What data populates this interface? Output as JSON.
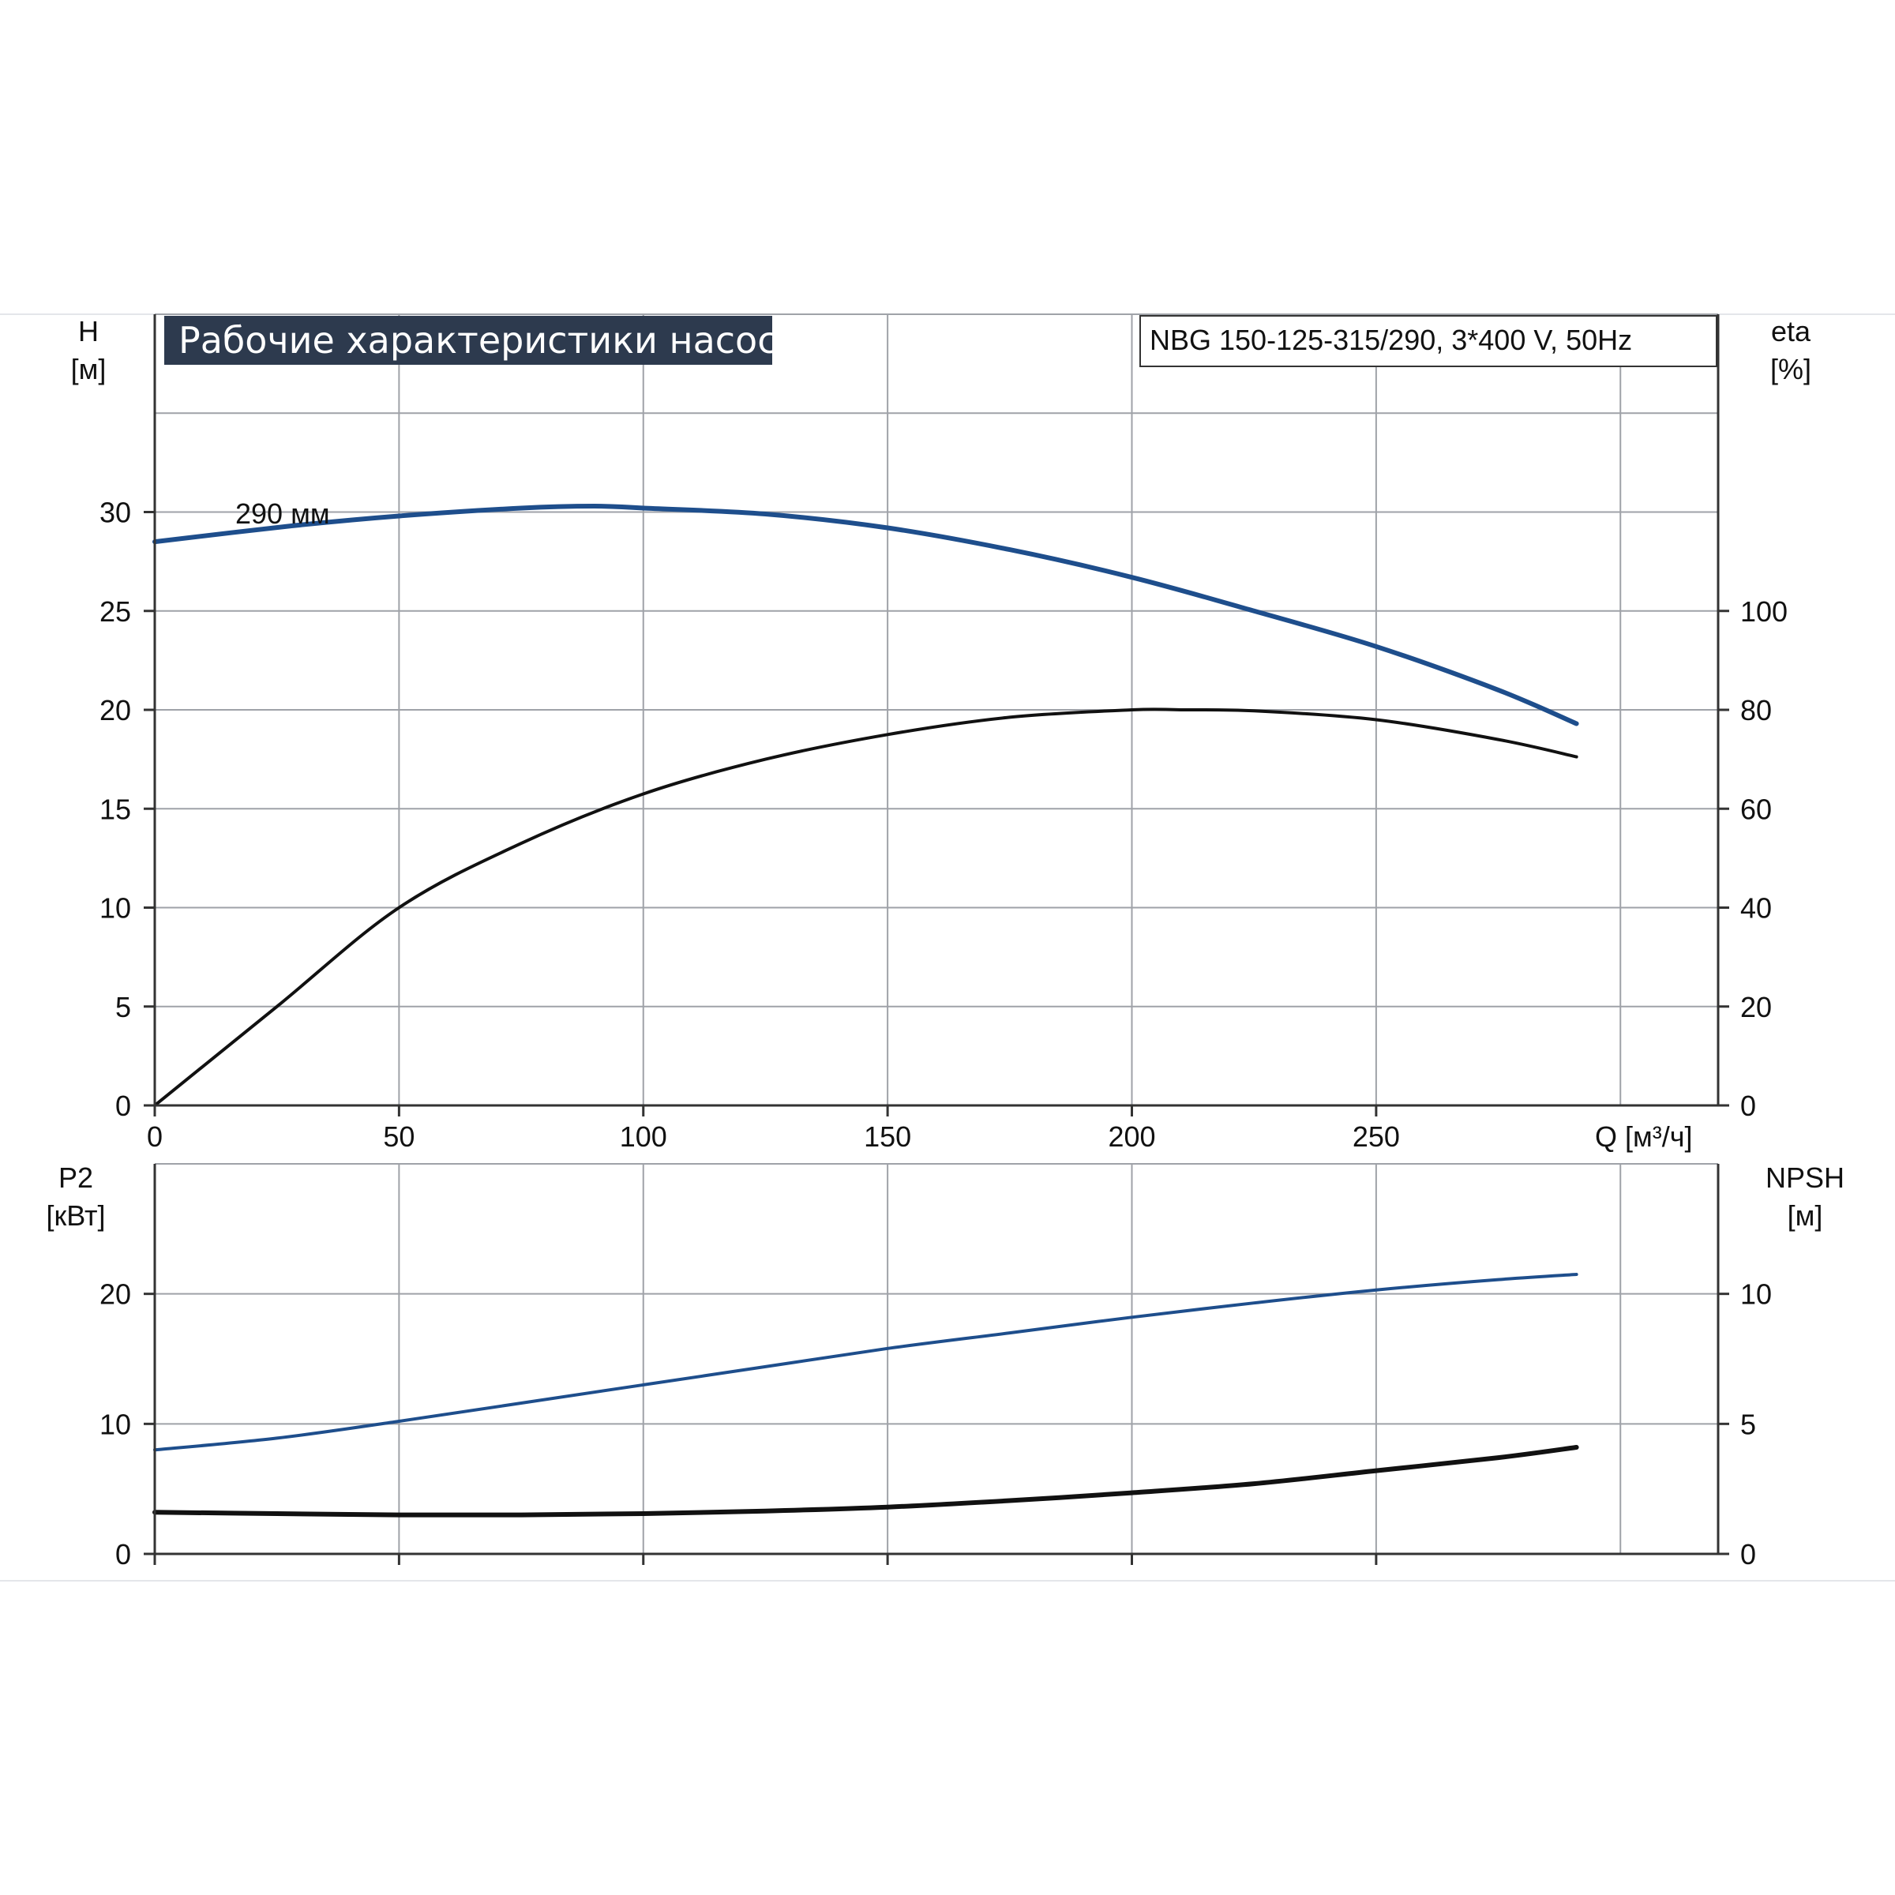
{
  "title": "Рабочие характеристики насоса",
  "model_label": "NBG 150-125-315/290, 3*400 V, 50Hz",
  "colors": {
    "blue": "#1e4e8c",
    "black": "#111111",
    "grid": "#9fa2a8",
    "title_bg": "#2d3a4e",
    "axis": "#333333"
  },
  "chart_data": [
    {
      "type": "line",
      "x_axis": {
        "label": "Q [м³/ч]",
        "range": [
          0,
          320
        ],
        "ticks": [
          0,
          50,
          100,
          150,
          200,
          250
        ]
      },
      "left_axis": {
        "label_line1": "H",
        "label_line2": "[м]",
        "range": [
          0,
          40
        ],
        "ticks": [
          0,
          5,
          10,
          15,
          20,
          25,
          30
        ]
      },
      "right_axis": {
        "label_line1": "eta",
        "label_line2": "[%]",
        "range": [
          0,
          160
        ],
        "ticks": [
          0,
          20,
          40,
          60,
          80,
          100
        ]
      },
      "grid": true,
      "series": [
        {
          "name": "290 мм",
          "axis": "left",
          "color": "#1e4e8c",
          "x": [
            0,
            28,
            50,
            75,
            90,
            100,
            125,
            150,
            175,
            200,
            225,
            250,
            275,
            291
          ],
          "y": [
            28.5,
            29.3,
            29.8,
            30.2,
            30.3,
            30.2,
            29.9,
            29.2,
            28.1,
            26.7,
            25.0,
            23.2,
            21.0,
            19.3
          ]
        },
        {
          "axis": "right",
          "color": "#111111",
          "x": [
            0,
            25,
            50,
            75,
            100,
            125,
            150,
            175,
            200,
            210,
            225,
            250,
            275,
            291
          ],
          "y": [
            0,
            20,
            40,
            53,
            63,
            70,
            75,
            78.5,
            80,
            80,
            79.8,
            78,
            74,
            70.5
          ]
        }
      ]
    },
    {
      "type": "line",
      "x_axis": {
        "range": [
          0,
          320
        ],
        "ticks": [
          0,
          50,
          100,
          150,
          200,
          250
        ]
      },
      "left_axis": {
        "label_line1": "P2",
        "label_line2": "[кВт]",
        "range": [
          0,
          30
        ],
        "ticks": [
          0,
          10,
          20
        ]
      },
      "right_axis": {
        "label_line1": "NPSH",
        "label_line2": "[м]",
        "range": [
          0,
          15
        ],
        "ticks": [
          0,
          5,
          10
        ]
      },
      "grid": true,
      "series": [
        {
          "axis": "left",
          "color": "#1e4e8c",
          "x": [
            0,
            25,
            50,
            75,
            100,
            125,
            150,
            175,
            200,
            225,
            250,
            275,
            291
          ],
          "y": [
            8.0,
            8.9,
            10.2,
            11.6,
            13.0,
            14.4,
            15.8,
            17.0,
            18.2,
            19.3,
            20.3,
            21.1,
            21.5
          ]
        },
        {
          "axis": "right",
          "color": "#111111",
          "x": [
            0,
            25,
            50,
            75,
            100,
            125,
            150,
            175,
            200,
            225,
            250,
            275,
            291
          ],
          "y": [
            1.6,
            1.55,
            1.5,
            1.5,
            1.55,
            1.65,
            1.8,
            2.05,
            2.35,
            2.7,
            3.2,
            3.7,
            4.1
          ]
        }
      ]
    }
  ]
}
